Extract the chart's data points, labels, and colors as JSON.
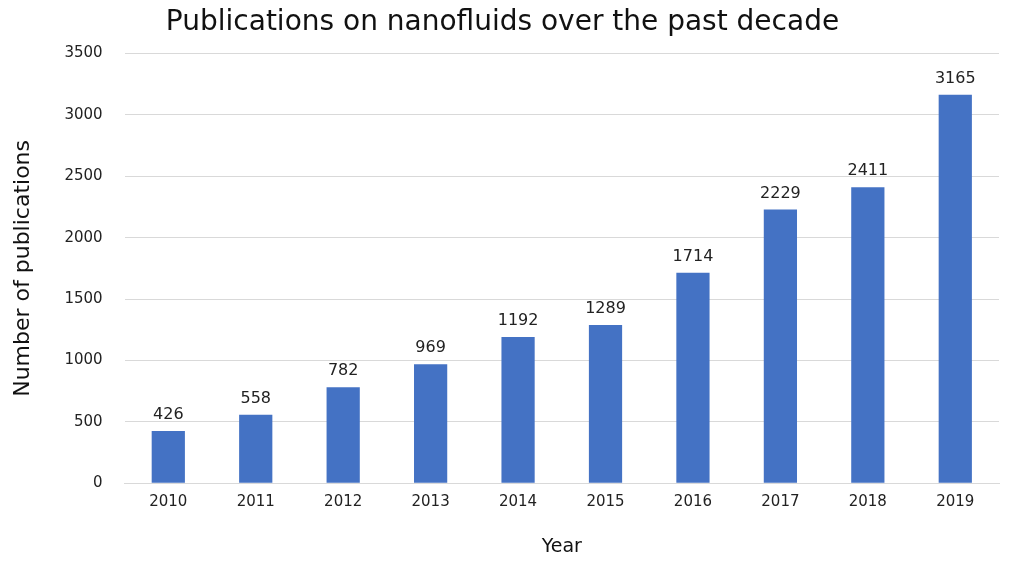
{
  "chart_data": {
    "type": "bar",
    "title": "Publications on nanofluids over the past decade",
    "xlabel": "Year",
    "ylabel": "Number of publications",
    "categories": [
      "2010",
      "2011",
      "2012",
      "2013",
      "2014",
      "2015",
      "2016",
      "2017",
      "2018",
      "2019"
    ],
    "values": [
      426,
      558,
      782,
      969,
      1192,
      1289,
      1714,
      2229,
      2411,
      3165
    ],
    "color": "#4472c4",
    "ylim": [
      0,
      3500
    ],
    "yticks": [
      0,
      500,
      1000,
      1500,
      2000,
      2500,
      3000,
      3500
    ],
    "grid": "y",
    "data_labels": true,
    "legend": false
  }
}
